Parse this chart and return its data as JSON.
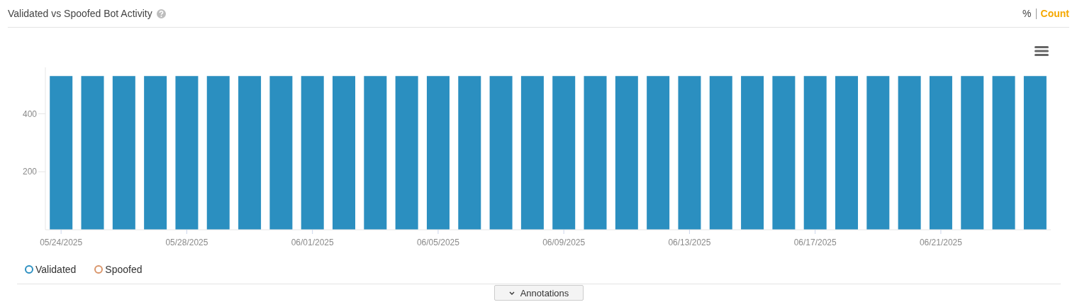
{
  "chart_data": {
    "type": "bar",
    "title": "Validated vs Spoofed Bot Activity",
    "categories": [
      "05/24/2025",
      null,
      null,
      null,
      "05/28/2025",
      null,
      null,
      null,
      "06/01/2025",
      null,
      null,
      null,
      "06/05/2025",
      null,
      null,
      null,
      "06/09/2025",
      null,
      null,
      null,
      "06/13/2025",
      null,
      null,
      null,
      "06/17/2025",
      null,
      null,
      null,
      "06/21/2025",
      null,
      null,
      null
    ],
    "series": [
      {
        "name": "Validated",
        "color": "#2b8fc0",
        "values": [
          530,
          530,
          530,
          530,
          530,
          530,
          530,
          530,
          530,
          530,
          530,
          530,
          530,
          530,
          530,
          530,
          530,
          530,
          530,
          530,
          530,
          530,
          530,
          530,
          530,
          530,
          530,
          530,
          530,
          530,
          530,
          530
        ]
      },
      {
        "name": "Spoofed",
        "color": "#d9956a",
        "values": [
          0,
          0,
          0,
          0,
          0,
          0,
          0,
          0,
          0,
          0,
          0,
          0,
          0,
          0,
          0,
          0,
          0,
          0,
          0,
          0,
          0,
          0,
          0,
          0,
          0,
          0,
          0,
          0,
          0,
          0,
          0,
          0
        ]
      }
    ],
    "stacked": true,
    "ylim": [
      0,
      560
    ],
    "yticks": [
      200,
      400
    ],
    "grid": false,
    "legend": "bottom left",
    "annotations": [
      "%",
      "Count",
      "Annotations"
    ]
  }
}
